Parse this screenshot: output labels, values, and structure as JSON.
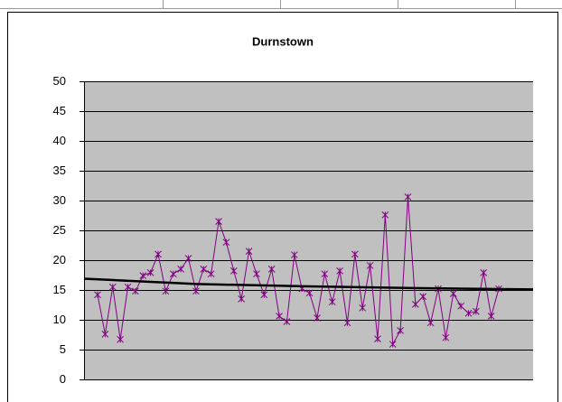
{
  "chart_data": {
    "type": "line",
    "title": "Durnstown",
    "ylim": [
      0,
      50
    ],
    "yticks": [
      0,
      5,
      10,
      15,
      20,
      25,
      30,
      35,
      40,
      45,
      50
    ],
    "grid": true,
    "series": [
      {
        "color": "#800080",
        "values": [
          14.2,
          7.6,
          15.5,
          6.7,
          15.5,
          14.8,
          17.4,
          17.9,
          21,
          14.8,
          17.7,
          18.5,
          20.3,
          14.8,
          18.5,
          17.7,
          26.5,
          23,
          18.2,
          13.5,
          21.5,
          17.7,
          14.2,
          18.5,
          10.6,
          9.7,
          20.9,
          15.2,
          14.5,
          10.3,
          17.7,
          13,
          18.2,
          9.5,
          21,
          12,
          19.1,
          6.8,
          27.6,
          5.9,
          8.2,
          30.6,
          12.6,
          13.9,
          9.5,
          15.2,
          7,
          14.4,
          12.3,
          11.1,
          11.4,
          17.9,
          10.6,
          15.2
        ]
      },
      {
        "color": "#000000",
        "values": [
          16.9,
          16.0,
          15.6,
          15.3,
          15.1
        ]
      }
    ]
  }
}
